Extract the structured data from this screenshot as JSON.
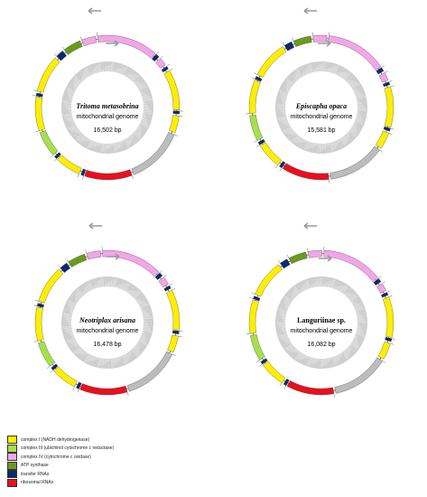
{
  "genomes": [
    {
      "species": "Tritoma metasobrina",
      "subtitle": "mitochondrial genome",
      "length": "16,502 bp"
    },
    {
      "species": "Episcapha opaca",
      "subtitle": "mitochondrial genome",
      "length": "15,581 bp"
    },
    {
      "species": "Neotriplax arisana",
      "subtitle": "mitochondrial genome",
      "length": "16,478 bp"
    },
    {
      "species": "Languriinae sp.",
      "subtitle": "mitochondrial genome",
      "length": "16,082 bp"
    }
  ],
  "legend": [
    {
      "label": "complex I (NADH dehydrogenase)",
      "color": "#ffee00"
    },
    {
      "label": "complex III (ubichinol cytochrome c reductase)",
      "color": "#a6e04c"
    },
    {
      "label": "complex IV (cytochrome c oxidase)",
      "color": "#f2a6e8"
    },
    {
      "label": "ATP synthase",
      "color": "#6b9a1e"
    },
    {
      "label": "transfer RNAs",
      "color": "#0b2a6f"
    },
    {
      "label": "ribosomal RNAs",
      "color": "#e8101e"
    }
  ],
  "colors": {
    "nad": "#ffee00",
    "cob": "#a6e04c",
    "cox": "#f2a6e8",
    "atp": "#6b9a1e",
    "trna": "#0b2a6f",
    "rrna": "#e8101e",
    "control": "#bcbcbc",
    "gc_ring": "#cfcfcf"
  },
  "segments": [
    [
      "cox",
      0,
      62
    ],
    [
      "trna",
      63,
      67
    ],
    [
      "cox",
      69,
      77
    ],
    [
      "trna",
      79,
      82
    ],
    [
      "nad",
      84,
      125
    ],
    [
      "trna",
      126,
      129
    ],
    [
      "nad",
      131,
      148
    ],
    [
      "control",
      150,
      208
    ],
    [
      "rrna",
      210,
      258
    ],
    [
      "trna",
      259,
      262
    ],
    [
      "nad",
      264,
      290
    ],
    [
      "trna",
      291,
      294
    ],
    [
      "cob",
      296,
      322
    ],
    [
      "nad",
      324,
      358
    ],
    [
      "trna",
      359,
      362
    ],
    [
      "nad",
      364,
      402
    ],
    [
      "trna",
      404,
      412
    ],
    [
      "atp",
      414,
      432
    ],
    [
      "cox",
      434,
      448
    ]
  ]
}
